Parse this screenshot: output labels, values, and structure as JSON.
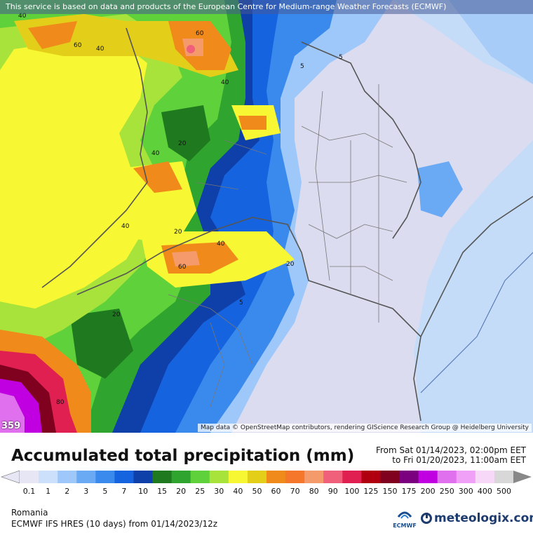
{
  "map": {
    "notice": "This service is based on data and products of the European Centre for Medium-range Weather Forecasts (ECMWF)",
    "attribution": "Map data © OpenStreetMap contributors, rendering GIScience Research Group @ Heidelberg University",
    "corner_value": "359",
    "contour_labels": [
      "40",
      "60",
      "40",
      "60",
      "40",
      "5",
      "5",
      "20",
      "40",
      "20",
      "40",
      "40",
      "60",
      "20",
      "20",
      "5",
      "80"
    ]
  },
  "title": "Accumulated total precipitation (mm)",
  "date_range": {
    "from": "From Sat 01/14/2023, 02:00pm EET",
    "to": "to Fri 01/20/2023, 11:00am EET"
  },
  "legend": {
    "values": [
      "0.1",
      "1",
      "2",
      "3",
      "5",
      "7",
      "10",
      "15",
      "20",
      "25",
      "30",
      "40",
      "50",
      "60",
      "70",
      "80",
      "90",
      "100",
      "125",
      "150",
      "175",
      "200",
      "250",
      "300",
      "400",
      "500"
    ],
    "colors": [
      "#e6e6f4",
      "#cde0fb",
      "#9fc8fa",
      "#6aaaf5",
      "#3a8aee",
      "#1663e0",
      "#0f3fa8",
      "#1f7a1f",
      "#2fa42f",
      "#5fd13a",
      "#a7e33a",
      "#f7f733",
      "#e3cf1a",
      "#f08a1a",
      "#f5772c",
      "#f59a6a",
      "#f0607a",
      "#e02050",
      "#b00010",
      "#800020",
      "#7a0080",
      "#c000e0",
      "#e070ee",
      "#f0a0f6",
      "#f7d8f8",
      "#d8d8d8"
    ]
  },
  "footer": {
    "region": "Romania",
    "model": "ECMWF IFS HRES (10 days) from 01/14/2023/12z",
    "ecmwf_label": "ECMWF",
    "brand": "meteologix.com"
  }
}
